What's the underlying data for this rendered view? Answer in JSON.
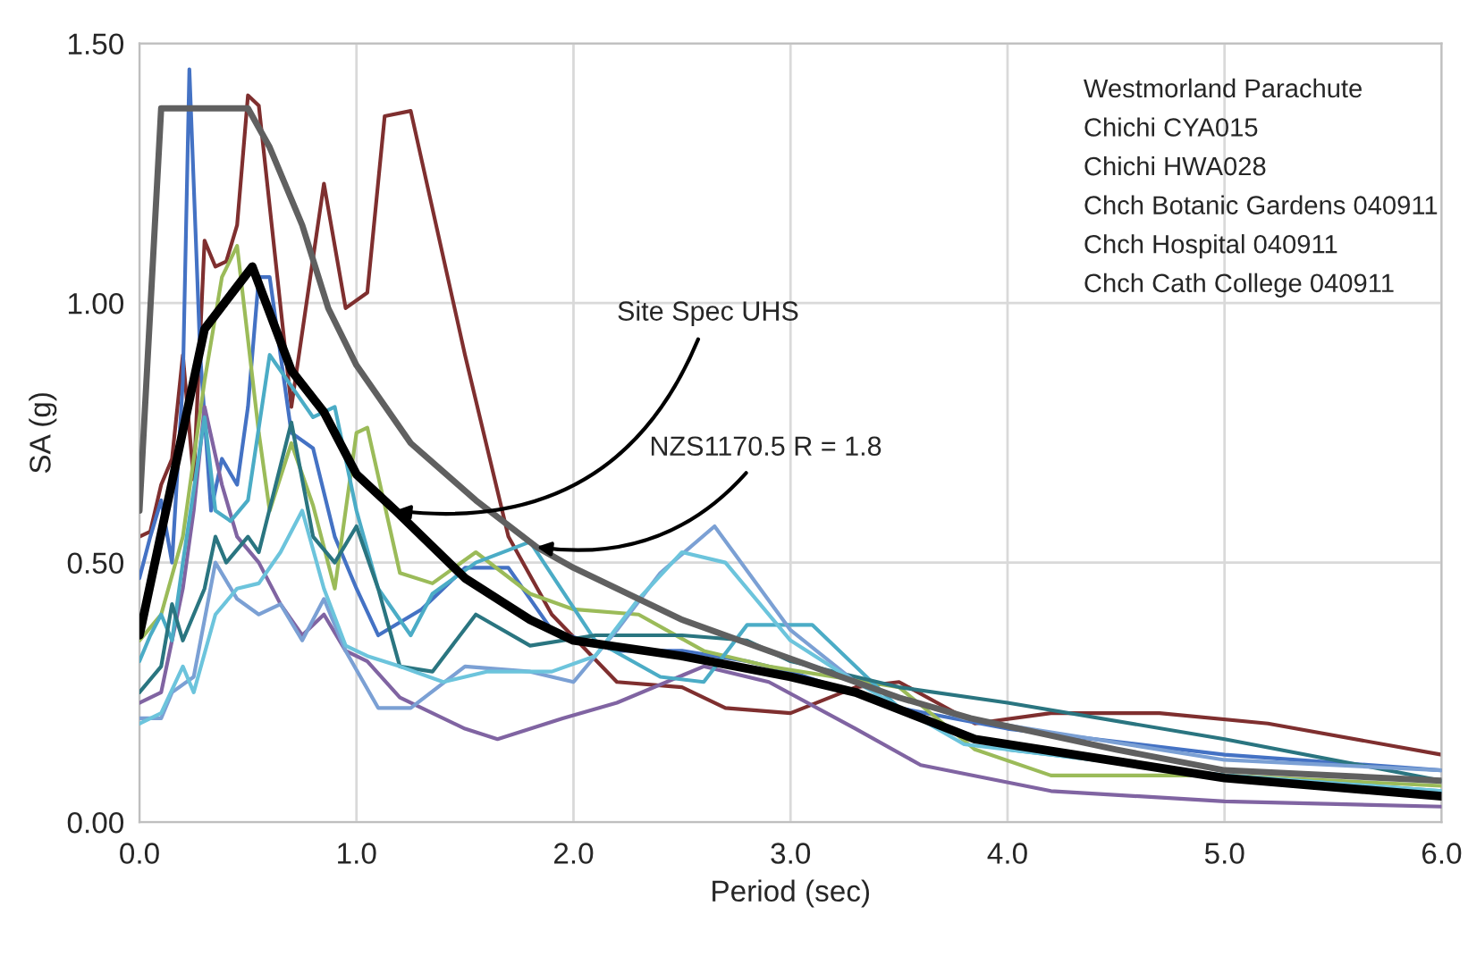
{
  "chart_data": {
    "type": "line",
    "xlabel": "Period (sec)",
    "ylabel": "SA (g)",
    "xlim": [
      0,
      6
    ],
    "ylim": [
      0,
      1.5
    ],
    "xticks": [
      {
        "value": 0,
        "label": "0.0"
      },
      {
        "value": 1,
        "label": "1.0"
      },
      {
        "value": 2,
        "label": "2.0"
      },
      {
        "value": 3,
        "label": "3.0"
      },
      {
        "value": 4,
        "label": "4.0"
      },
      {
        "value": 5,
        "label": "5.0"
      },
      {
        "value": 6,
        "label": "6.0"
      }
    ],
    "yticks": [
      {
        "value": 0,
        "label": "0.00"
      },
      {
        "value": 0.5,
        "label": "0.50"
      },
      {
        "value": 1,
        "label": "1.00"
      },
      {
        "value": 1.5,
        "label": "1.50"
      }
    ],
    "grid": true,
    "legend": false,
    "marker": "none",
    "line_style": "solid",
    "series": [
      {
        "color": "#7f2f2f",
        "x": [
          0,
          0.05,
          0.1,
          0.15,
          0.2,
          0.25,
          0.3,
          0.35,
          0.4,
          0.45,
          0.5,
          0.55,
          0.7,
          0.85,
          0.95,
          1.05,
          1.13,
          1.25,
          1.5,
          1.7,
          1.9,
          2.2,
          2.5,
          2.7,
          3.0,
          3.3,
          3.5,
          3.85,
          4.2,
          4.7,
          5.2,
          6.0
        ],
        "values": [
          0.55,
          0.56,
          0.65,
          0.7,
          0.9,
          0.66,
          1.12,
          1.07,
          1.08,
          1.15,
          1.4,
          1.38,
          0.8,
          1.23,
          0.99,
          1.02,
          1.36,
          1.37,
          0.9,
          0.55,
          0.4,
          0.27,
          0.26,
          0.22,
          0.21,
          0.26,
          0.27,
          0.19,
          0.21,
          0.21,
          0.19,
          0.13
        ]
      },
      {
        "color": "#4472c4",
        "x": [
          0,
          0.05,
          0.1,
          0.15,
          0.2,
          0.23,
          0.28,
          0.33,
          0.38,
          0.45,
          0.5,
          0.55,
          0.6,
          0.7,
          0.8,
          0.9,
          1.0,
          1.1,
          1.3,
          1.5,
          1.7,
          1.9,
          2.2,
          2.5,
          2.8,
          3.0,
          3.5,
          4.0,
          5.0,
          6.0
        ],
        "values": [
          0.47,
          0.55,
          0.62,
          0.5,
          0.85,
          1.45,
          0.9,
          0.6,
          0.7,
          0.65,
          0.8,
          1.05,
          1.05,
          0.75,
          0.72,
          0.55,
          0.45,
          0.36,
          0.41,
          0.49,
          0.49,
          0.37,
          0.33,
          0.33,
          0.31,
          0.29,
          0.22,
          0.18,
          0.13,
          0.1
        ]
      },
      {
        "color": "#9bbb59",
        "x": [
          0,
          0.1,
          0.2,
          0.3,
          0.38,
          0.45,
          0.55,
          0.6,
          0.7,
          0.8,
          0.9,
          1.0,
          1.05,
          1.2,
          1.35,
          1.55,
          1.8,
          2.0,
          2.3,
          2.6,
          2.9,
          3.2,
          3.5,
          3.85,
          4.2,
          5.0,
          6.0
        ],
        "values": [
          0.35,
          0.4,
          0.55,
          0.85,
          1.05,
          1.11,
          0.75,
          0.6,
          0.73,
          0.61,
          0.45,
          0.75,
          0.76,
          0.48,
          0.46,
          0.52,
          0.44,
          0.41,
          0.4,
          0.33,
          0.3,
          0.28,
          0.26,
          0.14,
          0.09,
          0.09,
          0.07
        ]
      },
      {
        "color": "#8064a2",
        "x": [
          0,
          0.1,
          0.15,
          0.2,
          0.25,
          0.3,
          0.38,
          0.45,
          0.55,
          0.65,
          0.75,
          0.85,
          0.95,
          1.05,
          1.2,
          1.5,
          1.65,
          1.95,
          2.2,
          2.6,
          2.9,
          3.3,
          3.6,
          4.2,
          5.0,
          6.0
        ],
        "values": [
          0.23,
          0.25,
          0.35,
          0.45,
          0.6,
          0.8,
          0.65,
          0.55,
          0.5,
          0.42,
          0.36,
          0.4,
          0.33,
          0.31,
          0.24,
          0.18,
          0.16,
          0.2,
          0.23,
          0.3,
          0.27,
          0.18,
          0.11,
          0.06,
          0.04,
          0.03
        ]
      },
      {
        "color": "#4bacc6",
        "x": [
          0,
          0.05,
          0.1,
          0.15,
          0.2,
          0.3,
          0.35,
          0.42,
          0.5,
          0.6,
          0.7,
          0.8,
          0.9,
          1.0,
          1.1,
          1.25,
          1.35,
          1.55,
          1.8,
          2.1,
          2.4,
          2.6,
          2.8,
          3.1,
          3.5,
          4.0,
          5.0,
          6.0
        ],
        "values": [
          0.31,
          0.36,
          0.4,
          0.35,
          0.5,
          0.78,
          0.6,
          0.58,
          0.62,
          0.9,
          0.84,
          0.78,
          0.8,
          0.6,
          0.45,
          0.36,
          0.44,
          0.5,
          0.54,
          0.35,
          0.28,
          0.27,
          0.38,
          0.38,
          0.22,
          0.14,
          0.09,
          0.06
        ]
      },
      {
        "color": "#2a7580",
        "x": [
          0,
          0.1,
          0.15,
          0.2,
          0.3,
          0.35,
          0.4,
          0.5,
          0.55,
          0.7,
          0.8,
          0.9,
          1.0,
          1.1,
          1.2,
          1.35,
          1.55,
          1.8,
          2.1,
          2.5,
          2.8,
          3.0,
          3.5,
          4.0,
          5.0,
          6.0
        ],
        "values": [
          0.25,
          0.3,
          0.42,
          0.35,
          0.45,
          0.55,
          0.5,
          0.55,
          0.52,
          0.77,
          0.55,
          0.5,
          0.57,
          0.45,
          0.3,
          0.29,
          0.4,
          0.34,
          0.36,
          0.36,
          0.35,
          0.31,
          0.26,
          0.23,
          0.16,
          0.08
        ]
      },
      {
        "color": "#7ba0d4",
        "x": [
          0,
          0.1,
          0.15,
          0.25,
          0.35,
          0.45,
          0.55,
          0.65,
          0.75,
          0.85,
          0.95,
          1.1,
          1.25,
          1.5,
          1.8,
          2.0,
          2.2,
          2.4,
          2.65,
          3.0,
          3.3,
          3.8,
          5.0,
          6.0
        ],
        "values": [
          0.2,
          0.2,
          0.25,
          0.28,
          0.5,
          0.43,
          0.4,
          0.42,
          0.35,
          0.43,
          0.33,
          0.22,
          0.22,
          0.3,
          0.29,
          0.27,
          0.37,
          0.48,
          0.57,
          0.37,
          0.27,
          0.2,
          0.12,
          0.1
        ]
      },
      {
        "color": "#6cc4dc",
        "x": [
          0,
          0.1,
          0.2,
          0.25,
          0.35,
          0.45,
          0.55,
          0.65,
          0.75,
          0.85,
          0.95,
          1.05,
          1.2,
          1.4,
          1.6,
          1.9,
          2.1,
          2.3,
          2.5,
          2.7,
          3.0,
          3.3,
          3.8,
          5.0,
          6.0
        ],
        "values": [
          0.19,
          0.21,
          0.3,
          0.25,
          0.4,
          0.45,
          0.46,
          0.52,
          0.6,
          0.45,
          0.34,
          0.32,
          0.3,
          0.27,
          0.29,
          0.29,
          0.32,
          0.43,
          0.52,
          0.5,
          0.35,
          0.27,
          0.15,
          0.09,
          0.06
        ]
      },
      {
        "color": "#606060",
        "x": [
          0,
          0.1,
          0.5,
          0.6,
          0.75,
          0.87,
          1.0,
          1.25,
          1.55,
          1.83,
          2.0,
          2.5,
          2.9,
          3.5,
          3.83,
          4.5,
          5.0,
          6.0
        ],
        "values": [
          0.6,
          1.375,
          1.375,
          1.3,
          1.15,
          0.99,
          0.88,
          0.73,
          0.62,
          0.53,
          0.49,
          0.39,
          0.33,
          0.24,
          0.2,
          0.14,
          0.1,
          0.08
        ]
      },
      {
        "color": "#000000",
        "x": [
          0,
          0.3,
          0.52,
          0.7,
          0.85,
          1.0,
          1.18,
          1.5,
          1.8,
          2.0,
          2.5,
          3.0,
          3.3,
          3.85,
          5.0,
          6.0
        ],
        "values": [
          0.36,
          0.95,
          1.07,
          0.87,
          0.79,
          0.67,
          0.6,
          0.47,
          0.39,
          0.35,
          0.32,
          0.28,
          0.25,
          0.16,
          0.085,
          0.05
        ]
      }
    ],
    "annotations": [
      "Westmorland Parachute",
      "Chichi CYA015",
      "Chichi HWA028",
      "Chch Botanic Gardens 040911",
      "Chch Hospital 040911",
      "Chch Cath College 040911",
      {
        "text": "Site Spec UHS",
        "x": 1.18,
        "y": 0.6
      },
      {
        "text": "NZS1170.5 R = 1.8",
        "x": 1.83,
        "y": 0.53
      }
    ]
  }
}
